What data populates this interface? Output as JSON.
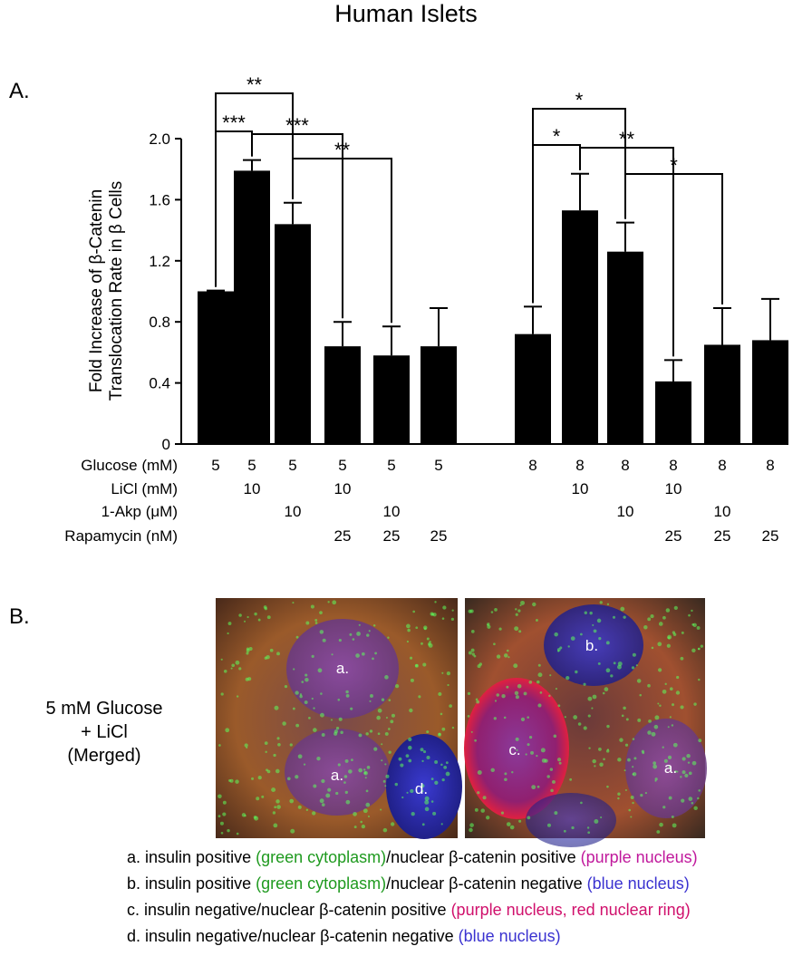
{
  "chart_data": {
    "type": "bar",
    "title": "Human Islets",
    "panel_label": "A.",
    "ylabel": [
      "Fold Increase of β-Catenin",
      "Translocation Rate in β Cells"
    ],
    "values": [
      1.0,
      1.79,
      1.44,
      0.64,
      0.58,
      0.64,
      0.72,
      1.53,
      1.26,
      0.41,
      0.65,
      0.68
    ],
    "errors": [
      0.005,
      0.07,
      0.14,
      0.16,
      0.19,
      0.25,
      0.18,
      0.24,
      0.19,
      0.14,
      0.24,
      0.27
    ],
    "color": "#000000",
    "ylim": [
      0,
      2.0
    ],
    "yticks": [
      0,
      0.4,
      0.8,
      1.2,
      1.6,
      {
        "value": 2,
        "label": "2.0"
      }
    ],
    "treatments": [
      {
        "label": "Glucose (mM)",
        "values": [
          5,
          5,
          5,
          5,
          5,
          5,
          8,
          8,
          8,
          8,
          8,
          8
        ]
      },
      {
        "label": "LiCl (mM)",
        "values": [
          null,
          10,
          null,
          10,
          null,
          null,
          null,
          10,
          null,
          10,
          null,
          null
        ]
      },
      {
        "label": "1-Akp (μM)",
        "values": [
          null,
          null,
          10,
          null,
          10,
          null,
          null,
          null,
          10,
          null,
          10,
          null
        ]
      },
      {
        "label": "Rapamycin (nM)",
        "values": [
          null,
          null,
          null,
          25,
          25,
          25,
          null,
          null,
          null,
          25,
          25,
          25
        ]
      }
    ],
    "significance": [
      {
        "from": 0,
        "to": 2,
        "label": "**"
      },
      {
        "from": 0,
        "to": 1,
        "label": "***"
      },
      {
        "from": 1,
        "to": 3,
        "label": "***"
      },
      {
        "from": 2,
        "to": 4,
        "label": "**"
      },
      {
        "from": 6,
        "to": 8,
        "label": "*"
      },
      {
        "from": 6,
        "to": 7,
        "label": "*"
      },
      {
        "from": 7,
        "to": 9,
        "label": "**"
      },
      {
        "from": 8,
        "to": 10,
        "label": "*"
      }
    ]
  },
  "panel_b": {
    "label": "B.",
    "caption": [
      "5 mM Glucose",
      "+ LiCl",
      "(Merged)"
    ],
    "images": [
      {
        "cells": [
          "a.",
          "a.",
          "d."
        ]
      },
      {
        "cells": [
          "b.",
          "c.",
          "a."
        ]
      }
    ],
    "legend": [
      [
        {
          "text": "a. insulin positive "
        },
        {
          "text": "(green cytoplasm)",
          "color": "#1f9a1f"
        },
        {
          "text": "/nuclear β-catenin positive "
        },
        {
          "text": "(purple nucleus)",
          "color": "#c0189c"
        }
      ],
      [
        {
          "text": "b. insulin positive "
        },
        {
          "text": "(green cytoplasm)",
          "color": "#1f9a1f"
        },
        {
          "text": "/nuclear β-catenin negative "
        },
        {
          "text": "(blue nucleus)",
          "color": "#3a32d0"
        }
      ],
      [
        {
          "text": "c. insulin negative/nuclear β-catenin positive "
        },
        {
          "text": "(purple nucleus, red nuclear ring)",
          "color": "#d0106c"
        }
      ],
      [
        {
          "text": "d. insulin negative/nuclear β-catenin negative "
        },
        {
          "text": "(blue nucleus)",
          "color": "#3a32d0"
        }
      ]
    ]
  }
}
